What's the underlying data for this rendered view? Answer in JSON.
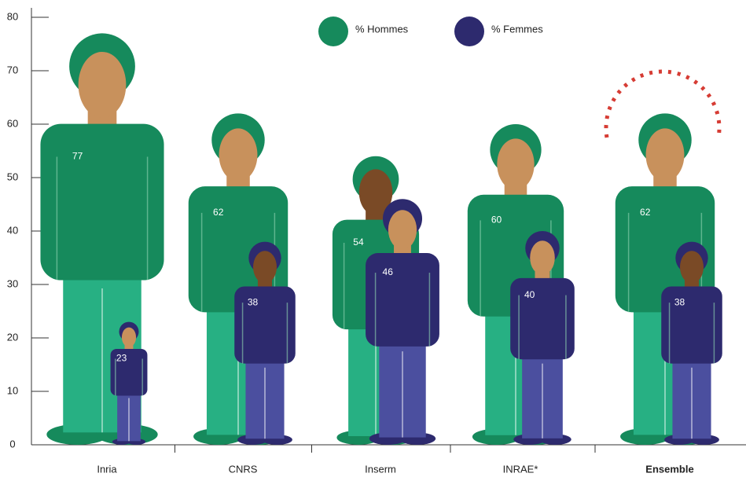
{
  "chart_data": {
    "type": "pictogram",
    "categories": [
      "Inria",
      "CNRS",
      "Inserm",
      "INRAE*",
      "Ensemble"
    ],
    "highlight_index": 4,
    "series": [
      {
        "name": "% Hommes",
        "color": "#168a5c",
        "secondary_color": "#27b083",
        "values": [
          77,
          62,
          54,
          60,
          62
        ]
      },
      {
        "name": "% Femmes",
        "color": "#2d2a6e",
        "secondary_color": "#4b4f9f",
        "values": [
          23,
          38,
          46,
          40,
          38
        ]
      }
    ],
    "ylim": [
      0,
      80
    ],
    "yticks": [
      0,
      10,
      20,
      30,
      40,
      50,
      60,
      70,
      80
    ],
    "legend": "top"
  }
}
